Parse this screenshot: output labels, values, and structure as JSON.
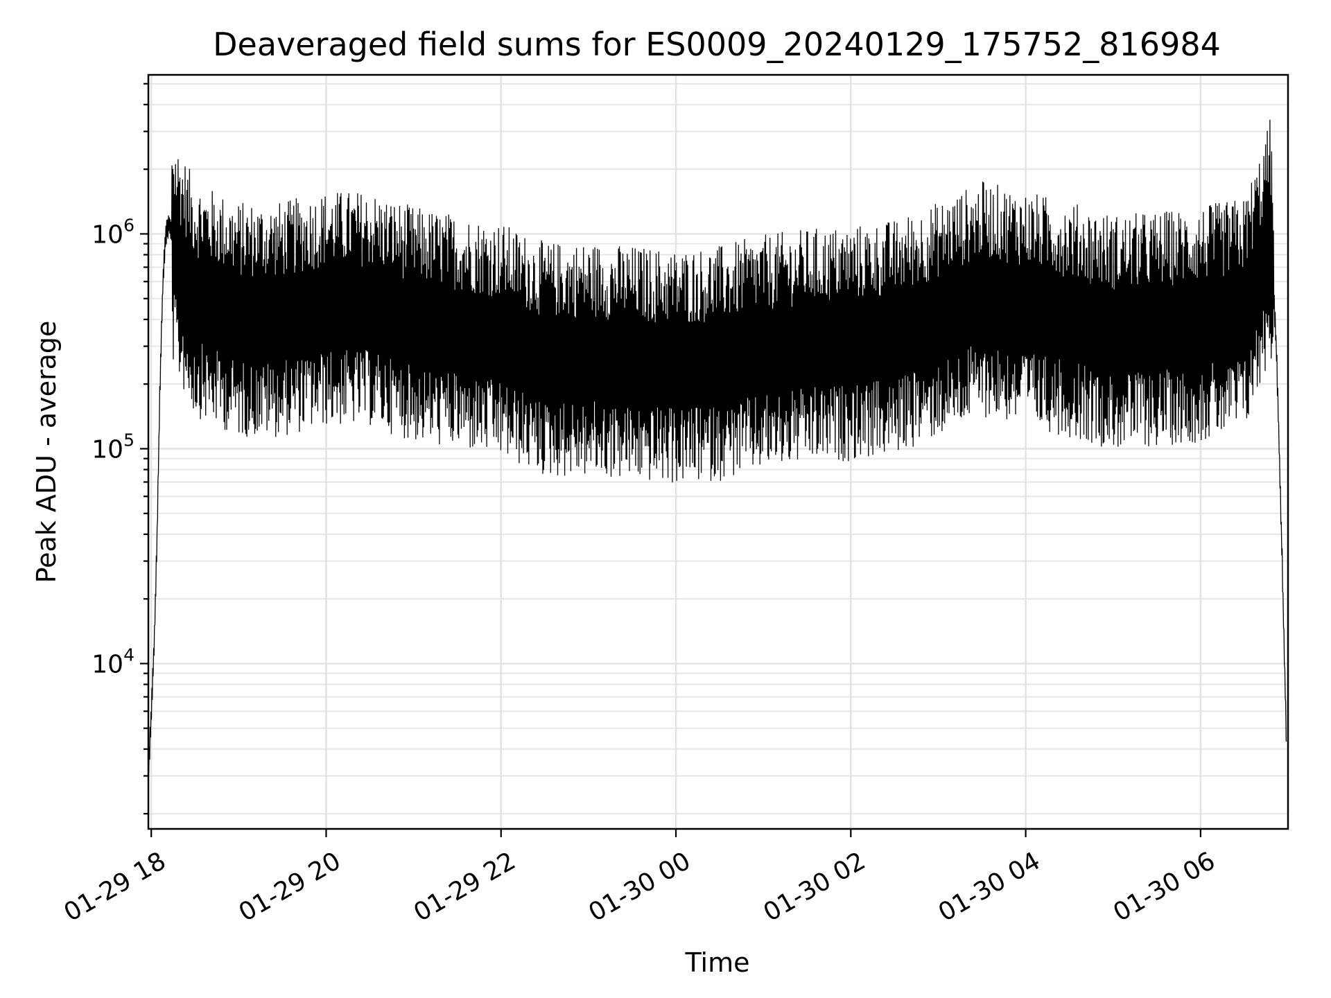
{
  "chart_data": {
    "type": "line",
    "title": "Deaveraged field sums for ES0009_20240129_175752_816984",
    "xlabel": "Time",
    "ylabel": "Peak ADU - average",
    "yscale": "log",
    "ylim": [
      1700,
      5500000
    ],
    "xlim": [
      "2024-01-29 17:58",
      "2024-01-30 07:00"
    ],
    "grid": true,
    "x_ticks": [
      {
        "value": "2024-01-29 18:00",
        "label": "01-29 18"
      },
      {
        "value": "2024-01-29 20:00",
        "label": "01-29 20"
      },
      {
        "value": "2024-01-29 22:00",
        "label": "01-29 22"
      },
      {
        "value": "2024-01-30 00:00",
        "label": "01-30 00"
      },
      {
        "value": "2024-01-30 02:00",
        "label": "01-30 02"
      },
      {
        "value": "2024-01-30 04:00",
        "label": "01-30 04"
      },
      {
        "value": "2024-01-30 06:00",
        "label": "01-30 06"
      }
    ],
    "y_ticks": [
      {
        "value": 10000,
        "base": "10",
        "exp": "4"
      },
      {
        "value": 100000,
        "base": "10",
        "exp": "5"
      },
      {
        "value": 1000000,
        "base": "10",
        "exp": "6"
      }
    ],
    "line_color": "#000000",
    "series": [
      {
        "x": [
          "2024-01-29 17:58",
          "2024-01-29 18:00",
          "2024-01-29 18:02",
          "2024-01-29 18:04",
          "2024-01-29 18:06",
          "2024-01-29 18:08",
          "2024-01-29 18:10",
          "2024-01-29 18:12",
          "2024-01-29 18:14",
          "2024-01-29 18:16",
          "2024-01-29 18:30",
          "2024-01-29 19:00",
          "2024-01-29 19:30",
          "2024-01-29 20:00",
          "2024-01-29 20:30",
          "2024-01-29 21:00",
          "2024-01-29 21:30",
          "2024-01-29 22:00",
          "2024-01-29 22:30",
          "2024-01-29 23:00",
          "2024-01-29 23:30",
          "2024-01-30 00:00",
          "2024-01-30 00:30",
          "2024-01-30 01:00",
          "2024-01-30 01:30",
          "2024-01-30 02:00",
          "2024-01-30 02:30",
          "2024-01-30 03:00",
          "2024-01-30 03:30",
          "2024-01-30 04:00",
          "2024-01-30 04:30",
          "2024-01-30 05:00",
          "2024-01-30 05:30",
          "2024-01-30 06:00",
          "2024-01-30 06:30",
          "2024-01-30 06:42",
          "2024-01-30 06:48",
          "2024-01-30 06:52",
          "2024-01-30 06:56",
          "2024-01-30 06:59"
        ],
        "values": [
          3000,
          6000,
          12000,
          40000,
          200000,
          600000,
          1000000,
          1100000,
          1000000,
          800000,
          500000,
          400000,
          400000,
          450000,
          450000,
          380000,
          350000,
          320000,
          260000,
          260000,
          250000,
          240000,
          250000,
          280000,
          300000,
          310000,
          330000,
          400000,
          500000,
          450000,
          400000,
          350000,
          360000,
          380000,
          420000,
          700000,
          1000000,
          300000,
          30000,
          4000
        ]
      }
    ]
  }
}
